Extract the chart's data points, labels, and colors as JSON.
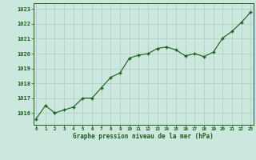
{
  "x": [
    0,
    1,
    2,
    3,
    4,
    5,
    6,
    7,
    8,
    9,
    10,
    11,
    12,
    13,
    14,
    15,
    16,
    17,
    18,
    19,
    20,
    21,
    22,
    23
  ],
  "y": [
    1015.6,
    1016.5,
    1016.0,
    1016.2,
    1016.4,
    1017.0,
    1017.0,
    1017.7,
    1018.4,
    1018.7,
    1019.7,
    1019.9,
    1020.0,
    1020.35,
    1020.45,
    1020.25,
    1019.85,
    1020.0,
    1019.8,
    1020.1,
    1021.05,
    1021.5,
    1022.1,
    1022.8
  ],
  "line_color": "#1a5c1a",
  "marker_color": "#1a5c1a",
  "bg_color": "#cce8dc",
  "grid_color": "#b0ccbe",
  "xlabel": "Graphe pression niveau de la mer (hPa)",
  "xlabel_color": "#1a5c1a",
  "tick_color": "#1a5c1a",
  "yticks": [
    1016,
    1017,
    1018,
    1019,
    1020,
    1021,
    1022,
    1023
  ],
  "xticks": [
    0,
    1,
    2,
    3,
    4,
    5,
    6,
    7,
    8,
    9,
    10,
    11,
    12,
    13,
    14,
    15,
    16,
    17,
    18,
    19,
    20,
    21,
    22,
    23
  ],
  "ylim": [
    1015.2,
    1023.4
  ],
  "xlim": [
    -0.3,
    23.3
  ]
}
